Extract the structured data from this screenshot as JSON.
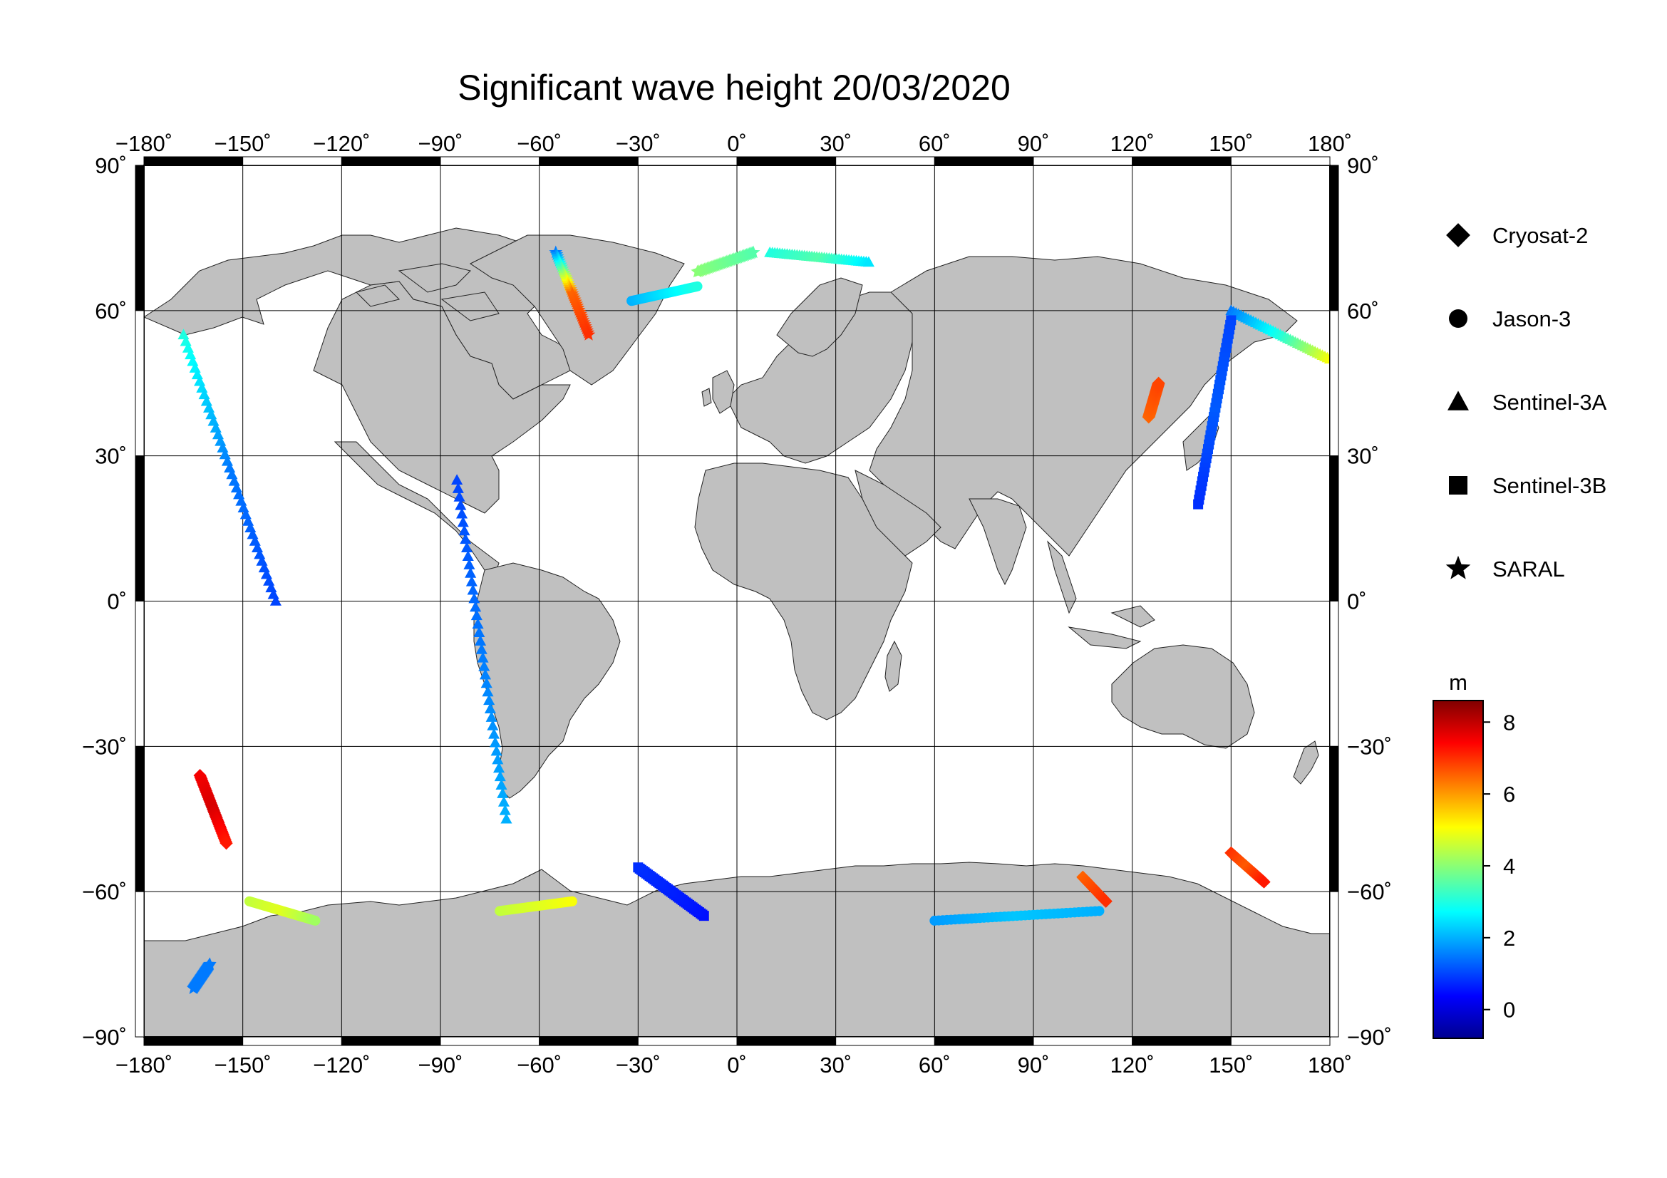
{
  "title": "Significant wave height 20/03/2020",
  "map": {
    "projection": "plate-carree",
    "lon_range": [
      -180,
      180
    ],
    "lat_range": [
      -90,
      90
    ],
    "lon_ticks": [
      "−180˚",
      "−150˚",
      "−120˚",
      "−90˚",
      "−60˚",
      "−30˚",
      "0˚",
      "30˚",
      "60˚",
      "90˚",
      "120˚",
      "150˚",
      "180˚"
    ],
    "lat_ticks_left": [
      "90˚",
      "60˚",
      "30˚",
      "0˚",
      "−30˚",
      "−60˚",
      "−90˚"
    ],
    "lat_ticks_right": [
      "90˚",
      "60˚",
      "30˚",
      "0˚",
      "−30˚",
      "−60˚",
      "−90˚"
    ],
    "land_color": "#c0c0c0",
    "ocean_color": "#ffffff"
  },
  "legend": {
    "items": [
      {
        "label": "Cryosat-2",
        "symbol": "diamond"
      },
      {
        "label": "Jason-3",
        "symbol": "circle"
      },
      {
        "label": "Sentinel-3A",
        "symbol": "triangle"
      },
      {
        "label": "Sentinel-3B",
        "symbol": "square"
      },
      {
        "label": "SARAL",
        "symbol": "star"
      }
    ]
  },
  "colorbar": {
    "unit": "m",
    "range": [
      -0.8,
      8.6
    ],
    "tick_labels": [
      "8",
      "6",
      "4",
      "2",
      "0"
    ],
    "colormap": "jet"
  },
  "chart_data": {
    "type": "scatter",
    "title": "Significant wave height 20/03/2020",
    "xlabel": "",
    "ylabel": "",
    "xlim": [
      -180,
      180
    ],
    "ylim": [
      -90,
      90
    ],
    "value_unit": "m",
    "series": [
      {
        "name": "Cryosat-2",
        "marker": "diamond",
        "tracks": [
          {
            "start": [
              -163,
              -36
            ],
            "end": [
              -155,
              -50
            ],
            "values": [
              7.5,
              7.8,
              7.2
            ]
          },
          {
            "start": [
              125,
              38
            ],
            "end": [
              128,
              45
            ],
            "values": [
              6.5,
              6.8
            ]
          },
          {
            "start": [
              105,
              -57
            ],
            "end": [
              112,
              -62
            ],
            "values": [
              6.5,
              7.0
            ]
          },
          {
            "start": [
              150,
              -52
            ],
            "end": [
              160,
              -58
            ],
            "values": [
              7.0,
              6.6,
              7.2
            ]
          }
        ]
      },
      {
        "name": "Jason-3",
        "marker": "circle",
        "tracks": [
          {
            "start": [
              -148,
              -62
            ],
            "end": [
              -128,
              -66
            ],
            "values": [
              4.5,
              4.8,
              4.2
            ]
          },
          {
            "start": [
              -72,
              -64
            ],
            "end": [
              -50,
              -62
            ],
            "values": [
              4.5,
              5.0
            ]
          },
          {
            "start": [
              -32,
              62
            ],
            "end": [
              -12,
              65
            ],
            "values": [
              2.0,
              2.5,
              3.0
            ]
          },
          {
            "start": [
              60,
              -66
            ],
            "end": [
              110,
              -64
            ],
            "values": [
              1.8,
              2.2,
              2.0
            ]
          }
        ]
      },
      {
        "name": "Sentinel-3A",
        "marker": "triangle",
        "tracks": [
          {
            "start": [
              -168,
              55
            ],
            "end": [
              -140,
              0
            ],
            "values": [
              3.0,
              1.5,
              1.0
            ]
          },
          {
            "start": [
              -85,
              25
            ],
            "end": [
              -70,
              -45
            ],
            "values": [
              1.0,
              1.5,
              2.0
            ]
          },
          {
            "start": [
              10,
              72
            ],
            "end": [
              40,
              70
            ],
            "values": [
              3.0,
              3.5,
              2.5
            ]
          },
          {
            "start": [
              150,
              60
            ],
            "end": [
              180,
              50
            ],
            "values": [
              1.5,
              3.0,
              5.0
            ]
          }
        ]
      },
      {
        "name": "Sentinel-3B",
        "marker": "square",
        "tracks": [
          {
            "start": [
              -10,
              -65
            ],
            "end": [
              -30,
              -55
            ],
            "values": [
              0.5,
              0.8
            ]
          },
          {
            "start": [
              150,
              58
            ],
            "end": [
              140,
              20
            ],
            "values": [
              1.0,
              1.2,
              0.8
            ]
          }
        ]
      },
      {
        "name": "SARAL",
        "marker": "star",
        "tracks": [
          {
            "start": [
              -55,
              72
            ],
            "end": [
              -45,
              55
            ],
            "values": [
              1.5,
              6.5,
              7.0
            ]
          },
          {
            "start": [
              -12,
              68
            ],
            "end": [
              5,
              72
            ],
            "values": [
              4.0,
              3.5
            ]
          },
          {
            "start": [
              -165,
              -80
            ],
            "end": [
              -160,
              -75
            ],
            "values": [
              1.5
            ]
          }
        ]
      }
    ]
  }
}
